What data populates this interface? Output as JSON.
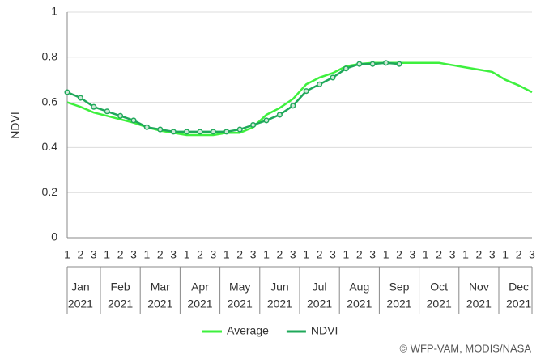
{
  "chart_data": {
    "type": "line",
    "y_label": "NDVI",
    "categories": [
      "1",
      "2",
      "3",
      "1",
      "2",
      "3",
      "1",
      "2",
      "3",
      "1",
      "2",
      "3",
      "1",
      "2",
      "3",
      "1",
      "2",
      "3",
      "1",
      "2",
      "3",
      "1",
      "2",
      "3",
      "1",
      "2",
      "3",
      "1",
      "2",
      "3",
      "1",
      "2",
      "3",
      "1",
      "2",
      "3"
    ],
    "month_labels": [
      "Jan",
      "Feb",
      "Mar",
      "Apr",
      "May",
      "Jun",
      "Jul",
      "Aug",
      "Sep",
      "Oct",
      "Nov",
      "Dec"
    ],
    "year_labels": [
      "2021",
      "2021",
      "2021",
      "2021",
      "2021",
      "2021",
      "2021",
      "2021",
      "2021",
      "2021",
      "2021",
      "2021"
    ],
    "series": [
      {
        "name": "Average",
        "color": "#3ef03e",
        "markers": false,
        "values": [
          0.6,
          0.58,
          0.555,
          0.54,
          0.525,
          0.51,
          0.49,
          0.475,
          0.465,
          0.455,
          0.455,
          0.455,
          0.465,
          0.465,
          0.49,
          0.545,
          0.575,
          0.615,
          0.68,
          0.71,
          0.73,
          0.76,
          0.77,
          0.775,
          0.775,
          0.775,
          0.775,
          0.775,
          0.775,
          0.765,
          0.755,
          0.745,
          0.735,
          0.7,
          0.675,
          0.645
        ]
      },
      {
        "name": "NDVI",
        "color": "#1fa85a",
        "markers": true,
        "values": [
          0.645,
          0.62,
          0.58,
          0.56,
          0.54,
          0.52,
          0.49,
          0.48,
          0.47,
          0.47,
          0.47,
          0.47,
          0.47,
          0.48,
          0.5,
          0.52,
          0.545,
          0.585,
          0.65,
          0.68,
          0.71,
          0.75,
          0.77,
          0.77,
          0.775,
          0.77,
          null,
          null,
          null,
          null,
          null,
          null,
          null,
          null,
          null,
          null
        ]
      }
    ],
    "ylim": [
      0,
      1
    ],
    "yticks": [
      0,
      0.2,
      0.4,
      0.6,
      0.8,
      1
    ],
    "grid": true,
    "legend": "bottom",
    "credit": "© WFP-VAM, MODIS/NASA"
  }
}
